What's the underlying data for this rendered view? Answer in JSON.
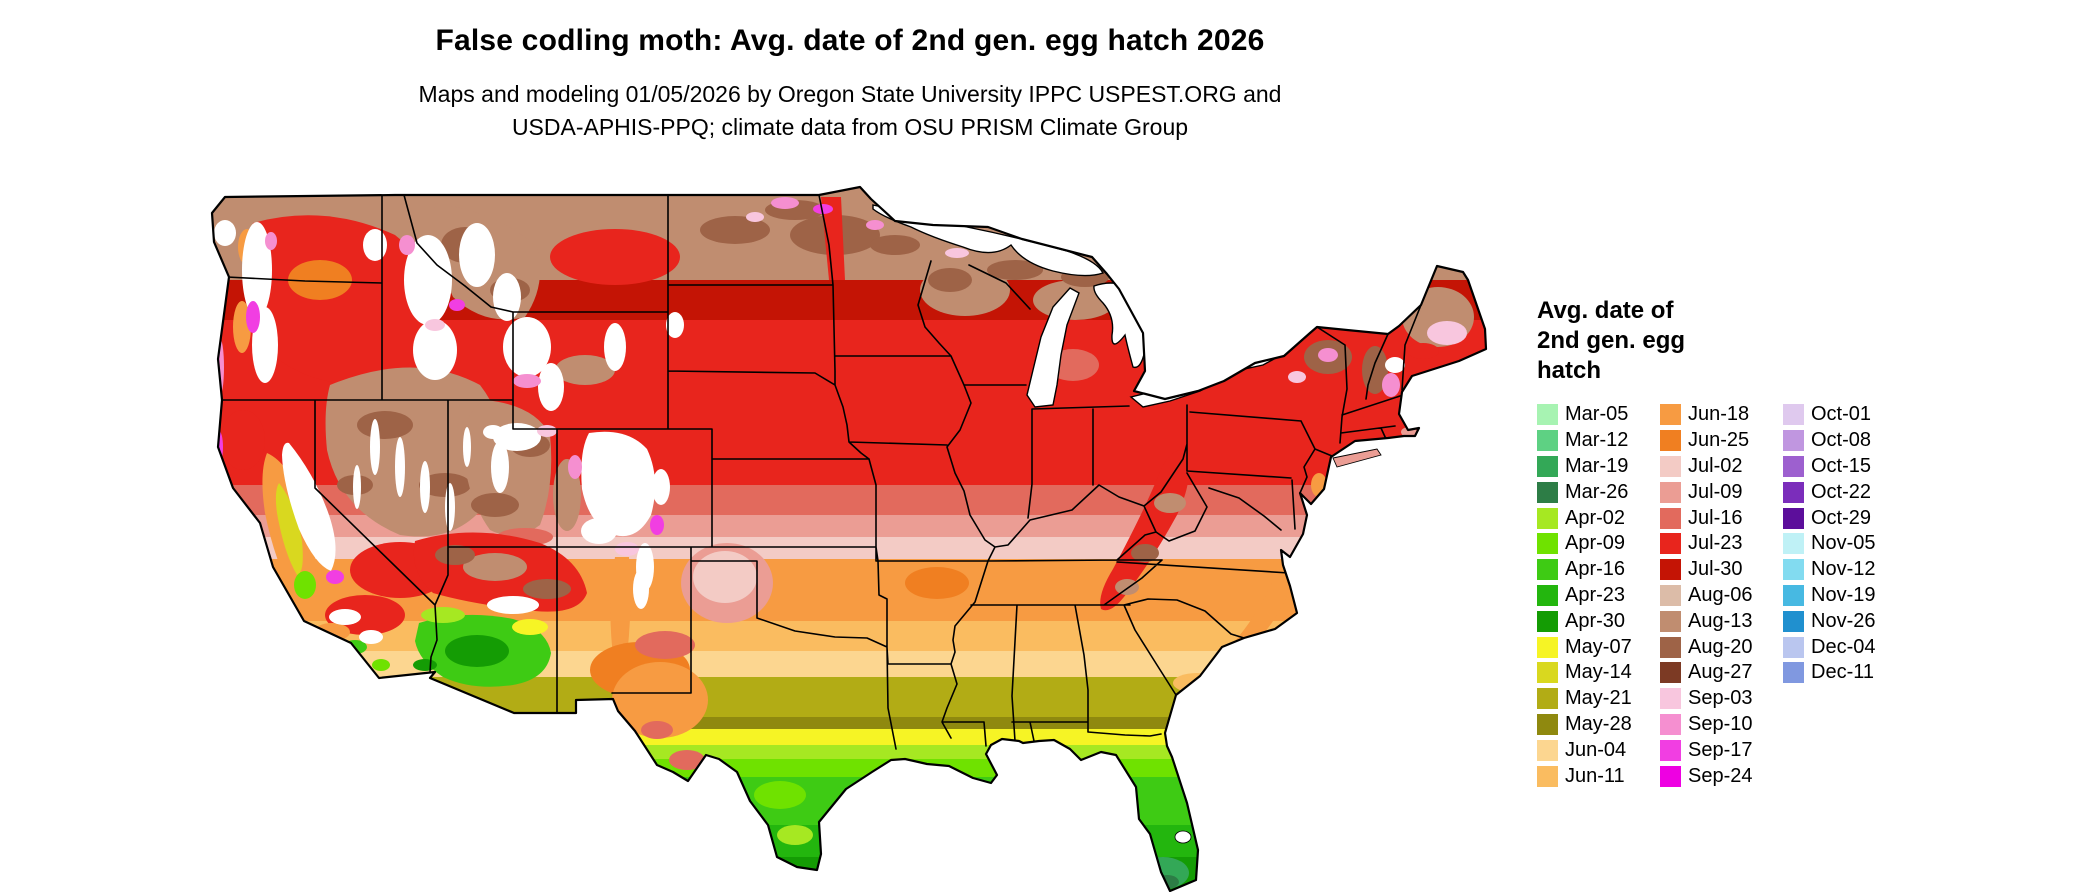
{
  "header": {
    "title": "False codling moth: Avg. date of 2nd gen. egg hatch 2026",
    "subtitle_line1": "Maps and modeling 01/05/2026 by Oregon State University IPPC USPEST.ORG and",
    "subtitle_line2": "USDA-APHIS-PPQ; climate data from OSU PRISM Climate Group"
  },
  "map": {
    "alt": "Choropleth map of the continental United States colored by average date of 2nd generation egg hatch"
  },
  "legend": {
    "title_lines": [
      "Avg. date of",
      "2nd gen. egg",
      "hatch"
    ],
    "columns": [
      [
        {
          "key": "mar05",
          "label": "Mar-05",
          "color": "#a7f3b2"
        },
        {
          "key": "mar12",
          "label": "Mar-12",
          "color": "#5ed183"
        },
        {
          "key": "mar19",
          "label": "Mar-19",
          "color": "#33a857"
        },
        {
          "key": "mar26",
          "label": "Mar-26",
          "color": "#2d7d46"
        },
        {
          "key": "apr02",
          "label": "Apr-02",
          "color": "#a6e822"
        },
        {
          "key": "apr09",
          "label": "Apr-09",
          "color": "#6fe200"
        },
        {
          "key": "apr16",
          "label": "Apr-16",
          "color": "#3ecb14"
        },
        {
          "key": "apr23",
          "label": "Apr-23",
          "color": "#23b60e"
        },
        {
          "key": "apr30",
          "label": "Apr-30",
          "color": "#149c04"
        },
        {
          "key": "may07",
          "label": "May-07",
          "color": "#f6f425"
        },
        {
          "key": "may14",
          "label": "May-14",
          "color": "#d9d81f"
        },
        {
          "key": "may21",
          "label": "May-21",
          "color": "#b2ac15"
        },
        {
          "key": "may28",
          "label": "May-28",
          "color": "#8f890f"
        },
        {
          "key": "jun04",
          "label": "Jun-04",
          "color": "#fcd690"
        },
        {
          "key": "jun11",
          "label": "Jun-11",
          "color": "#fabc60"
        }
      ],
      [
        {
          "key": "jun18",
          "label": "Jun-18",
          "color": "#f79b42"
        },
        {
          "key": "jun25",
          "label": "Jun-25",
          "color": "#f07f21"
        },
        {
          "key": "jul02",
          "label": "Jul-02",
          "color": "#f3cbc5"
        },
        {
          "key": "jul09",
          "label": "Jul-09",
          "color": "#eb9d94"
        },
        {
          "key": "jul16",
          "label": "Jul-16",
          "color": "#e26a5d"
        },
        {
          "key": "jul23",
          "label": "Jul-23",
          "color": "#e8251d"
        },
        {
          "key": "jul30",
          "label": "Jul-30",
          "color": "#c41405"
        },
        {
          "key": "aug06",
          "label": "Aug-06",
          "color": "#dcbca8"
        },
        {
          "key": "aug13",
          "label": "Aug-13",
          "color": "#c08d70"
        },
        {
          "key": "aug20",
          "label": "Aug-20",
          "color": "#9e6347"
        },
        {
          "key": "aug27",
          "label": "Aug-27",
          "color": "#7c3a24"
        },
        {
          "key": "sep03",
          "label": "Sep-03",
          "color": "#f8c6de"
        },
        {
          "key": "sep10",
          "label": "Sep-10",
          "color": "#f58fd0"
        },
        {
          "key": "sep17",
          "label": "Sep-17",
          "color": "#f13ee2"
        },
        {
          "key": "sep24",
          "label": "Sep-24",
          "color": "#ee00e2"
        }
      ],
      [
        {
          "key": "oct01",
          "label": "Oct-01",
          "color": "#dfc9ee"
        },
        {
          "key": "oct08",
          "label": "Oct-08",
          "color": "#c096e0"
        },
        {
          "key": "oct15",
          "label": "Oct-15",
          "color": "#9d60cf"
        },
        {
          "key": "oct22",
          "label": "Oct-22",
          "color": "#7b2dbb"
        },
        {
          "key": "oct29",
          "label": "Oct-29",
          "color": "#5c0e9b"
        },
        {
          "key": "nov05",
          "label": "Nov-05",
          "color": "#bff1f6"
        },
        {
          "key": "nov12",
          "label": "Nov-12",
          "color": "#82dbf0"
        },
        {
          "key": "nov19",
          "label": "Nov-19",
          "color": "#47b9e2"
        },
        {
          "key": "nov26",
          "label": "Nov-26",
          "color": "#2090cf"
        },
        {
          "key": "dec04",
          "label": "Dec-04",
          "color": "#bac6ef"
        },
        {
          "key": "dec11",
          "label": "Dec-11",
          "color": "#8098e0"
        }
      ]
    ]
  }
}
